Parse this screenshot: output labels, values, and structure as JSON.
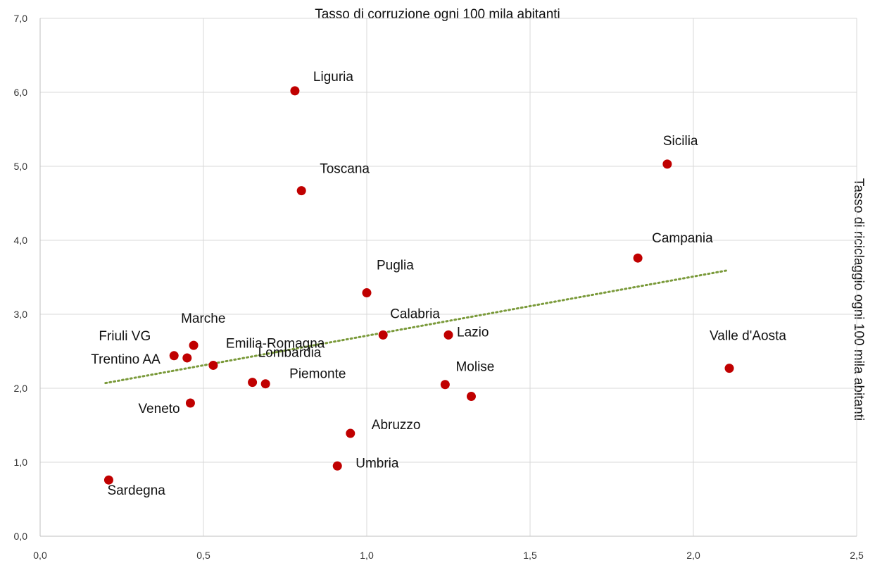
{
  "chart_data": {
    "type": "scatter",
    "title": "Tasso di corruzione ogni 100 mila abitanti",
    "xlabel": "",
    "ylabel": "Tasso di riciclaggio ogni 100 mila abitanti",
    "xlim": [
      0,
      2.5
    ],
    "ylim": [
      0,
      7
    ],
    "x_ticks": [
      "0,0",
      "0,5",
      "1,0",
      "1,5",
      "2,0",
      "2,5"
    ],
    "y_ticks": [
      "0,0",
      "1,0",
      "2,0",
      "3,0",
      "4,0",
      "5,0",
      "6,0",
      "7,0"
    ],
    "grid": true,
    "point_color": "#c00000",
    "trendline": {
      "style": "dotted",
      "color": "#7a9a3a",
      "x": [
        0.2,
        2.1
      ],
      "y": [
        2.07,
        3.59
      ]
    },
    "points": [
      {
        "label": "Liguria",
        "x": 0.78,
        "y": 6.02
      },
      {
        "label": "Toscana",
        "x": 0.8,
        "y": 4.67
      },
      {
        "label": "Sicilia",
        "x": 1.92,
        "y": 5.03
      },
      {
        "label": "Campania",
        "x": 1.83,
        "y": 3.76
      },
      {
        "label": "Puglia",
        "x": 1.0,
        "y": 3.29
      },
      {
        "label": "Calabria",
        "x": 1.05,
        "y": 2.72
      },
      {
        "label": "Lazio",
        "x": 1.25,
        "y": 2.72
      },
      {
        "label": "Valle d'Aosta",
        "x": 2.11,
        "y": 2.27
      },
      {
        "label": "Friuli VG",
        "x": 0.41,
        "y": 2.44
      },
      {
        "label": "Marche",
        "x": 0.47,
        "y": 2.58
      },
      {
        "label": "Trentino AA",
        "x": 0.45,
        "y": 2.41
      },
      {
        "label": "Emilia-Romagna",
        "x": 0.53,
        "y": 2.31
      },
      {
        "label": "Lombardia",
        "x": 0.65,
        "y": 2.08
      },
      {
        "label": "Piemonte",
        "x": 0.69,
        "y": 2.06
      },
      {
        "label": "Molise",
        "x": 1.32,
        "y": 1.89
      },
      {
        "label": "Veneto",
        "x": 0.46,
        "y": 1.8
      },
      {
        "label": "Abruzzo",
        "x": 0.95,
        "y": 1.39
      },
      {
        "label": "Umbria",
        "x": 0.91,
        "y": 0.95
      },
      {
        "label": "Sardegna",
        "x": 0.21,
        "y": 0.76
      },
      {
        "label": "",
        "x": 1.24,
        "y": 2.05
      }
    ]
  }
}
